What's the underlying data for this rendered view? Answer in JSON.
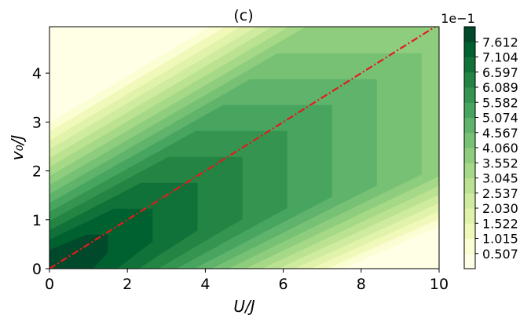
{
  "chart_data": {
    "type": "contour",
    "title": "(c)",
    "xlabel": "U/J",
    "ylabel": "v₀/J",
    "xlim": [
      0,
      10
    ],
    "ylim": [
      0,
      4.95
    ],
    "xticks": [
      "0",
      "2",
      "4",
      "6",
      "8",
      "10"
    ],
    "yticks": [
      "0",
      "1",
      "2",
      "3",
      "4"
    ],
    "colorbar": {
      "label": "1e−1",
      "levels": [
        "0.507",
        "1.015",
        "1.522",
        "2.030",
        "2.537",
        "3.045",
        "3.552",
        "4.060",
        "4.567",
        "5.074",
        "5.582",
        "6.089",
        "6.597",
        "7.104",
        "7.612"
      ],
      "colors": [
        "#ffffe5",
        "#fbfdd2",
        "#f0f9b9",
        "#e1f2ab",
        "#cfeb9f",
        "#bbe291",
        "#a5d987",
        "#8fcd7e",
        "#77c175",
        "#5fb36b",
        "#47a55f",
        "#35944f",
        "#238443",
        "#117239",
        "#006130",
        "#00492a"
      ]
    },
    "reference_line": {
      "x": [
        0,
        10
      ],
      "y": [
        0,
        5
      ],
      "color": "#e41a1c",
      "style": "dash-dot"
    }
  }
}
